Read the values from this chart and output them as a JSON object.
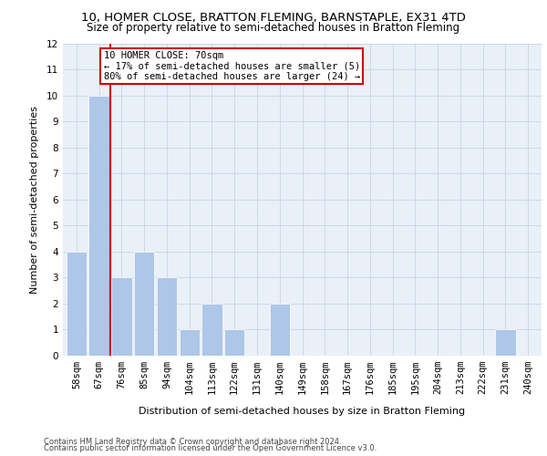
{
  "title1": "10, HOMER CLOSE, BRATTON FLEMING, BARNSTAPLE, EX31 4TD",
  "title2": "Size of property relative to semi-detached houses in Bratton Fleming",
  "xlabel": "Distribution of semi-detached houses by size in Bratton Fleming",
  "ylabel": "Number of semi-detached properties",
  "categories": [
    "58sqm",
    "67sqm",
    "76sqm",
    "85sqm",
    "94sqm",
    "104sqm",
    "113sqm",
    "122sqm",
    "131sqm",
    "140sqm",
    "149sqm",
    "158sqm",
    "167sqm",
    "176sqm",
    "185sqm",
    "195sqm",
    "204sqm",
    "213sqm",
    "222sqm",
    "231sqm",
    "240sqm"
  ],
  "values": [
    4,
    10,
    3,
    4,
    3,
    1,
    2,
    1,
    0,
    2,
    0,
    0,
    0,
    0,
    0,
    0,
    0,
    0,
    0,
    1,
    0
  ],
  "bar_color": "#aec6e8",
  "annotation_box_color": "#cc0000",
  "vline_color": "#cc0000",
  "ylim": [
    0,
    12
  ],
  "yticks": [
    0,
    1,
    2,
    3,
    4,
    5,
    6,
    7,
    8,
    9,
    10,
    11,
    12
  ],
  "annotation_text": "10 HOMER CLOSE: 70sqm\n← 17% of semi-detached houses are smaller (5)\n80% of semi-detached houses are larger (24) →",
  "footer1": "Contains HM Land Registry data © Crown copyright and database right 2024.",
  "footer2": "Contains public sector information licensed under the Open Government Licence v3.0.",
  "bg_color": "#eaf0f8",
  "grid_color": "#c8d4e4",
  "title1_fontsize": 9.5,
  "title2_fontsize": 8.5,
  "xlabel_fontsize": 8,
  "ylabel_fontsize": 8,
  "tick_fontsize": 7.5,
  "annotation_fontsize": 7.5,
  "footer_fontsize": 6.0
}
